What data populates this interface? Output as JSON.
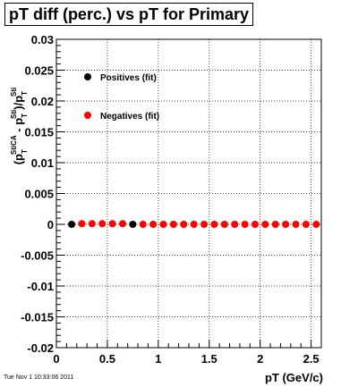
{
  "chart_data": {
    "type": "scatter",
    "title": "pT diff (perc.) vs pT for Primary",
    "xlabel": "pT (GeV/c)",
    "ylabel": {
      "open": "(p",
      "t_sub": "T",
      "t_sup": "StiCA",
      "minus": " - p",
      "t2_sub": "T",
      "t2_sup": "Sti",
      "close": ")/p",
      "t3_sub": "T",
      "t3_sup": "Sti"
    },
    "xlim": [
      0,
      2.6
    ],
    "ylim": [
      -0.02,
      0.03
    ],
    "xticks": [
      0,
      0.5,
      1,
      1.5,
      2,
      2.5
    ],
    "xtick_labels": [
      "0",
      "0.5",
      "1",
      "1.5",
      "2",
      "2.5"
    ],
    "yticks": [
      -0.02,
      -0.015,
      -0.01,
      -0.005,
      0,
      0.005,
      0.01,
      0.015,
      0.02,
      0.025,
      0.03
    ],
    "ytick_labels": [
      "-0.02",
      "-0.015",
      "-0.01",
      "-0.005",
      "0",
      "0.005",
      "0.01",
      "0.015",
      "0.02",
      "0.025",
      "0.03"
    ],
    "grid": true,
    "legend_placement": "top-left inside",
    "series": [
      {
        "name": "Positives (fit)",
        "color": "#000000",
        "x": [
          0.15,
          0.75
        ],
        "y": [
          0.0,
          0.0
        ]
      },
      {
        "name": "Negatives (fit)",
        "color": "#ff0000",
        "x": [
          0.25,
          0.35,
          0.45,
          0.55,
          0.65,
          0.85,
          0.95,
          1.05,
          1.15,
          1.25,
          1.35,
          1.45,
          1.55,
          1.65,
          1.75,
          1.85,
          1.95,
          2.05,
          2.15,
          2.25,
          2.35,
          2.45,
          2.55
        ],
        "y": [
          0.0001,
          0.0001,
          0.0001,
          0.0001,
          0.0001,
          0.0,
          0.0,
          0.0,
          0.0,
          0.0,
          0.0,
          0.0,
          0.0,
          0.0,
          0.0,
          0.0,
          0.0,
          0.0,
          0.0,
          0.0,
          0.0,
          0.0,
          0.0
        ]
      }
    ]
  },
  "footer": {
    "timestamp": "Tue Nov  1 10:33:06 2011"
  }
}
